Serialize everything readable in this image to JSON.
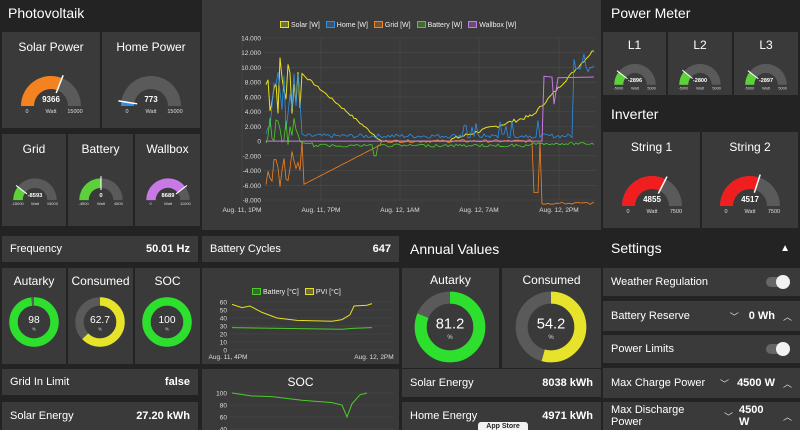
{
  "photovoltaik": {
    "title": "Photovoltaik",
    "solar": {
      "title": "Solar Power",
      "value": "9366",
      "min": "0",
      "max": "15000",
      "unit": "Watt",
      "color": "#f58220",
      "level": 0.62
    },
    "home": {
      "title": "Home Power",
      "value": "773",
      "min": "0",
      "max": "15000",
      "unit": "Watt",
      "color": "#2f8fe6",
      "level": 0.05
    },
    "grid": {
      "title": "Grid",
      "value": "-8593",
      "min": "-15000",
      "max": "15000",
      "unit": "Watt",
      "color": "#5dd13a",
      "level": 0.21
    },
    "battery": {
      "title": "Battery",
      "value": "0",
      "min": "-4500",
      "max": "4500",
      "unit": "Watt",
      "color": "#5dd13a",
      "level": 0.5
    },
    "wallbox": {
      "title": "Wallbox",
      "value": "8689",
      "min": "0",
      "max": "11000",
      "unit": "Watt",
      "color": "#c879e6",
      "level": 0.79
    }
  },
  "power_meter": {
    "title": "Power Meter",
    "l1": {
      "title": "L1",
      "value": "-2896",
      "min": "-5000",
      "max": "5000",
      "unit": "Watt",
      "color": "#5dd13a",
      "level": 0.21
    },
    "l2": {
      "title": "L2",
      "value": "-2800",
      "min": "-5000",
      "max": "5000",
      "unit": "Watt",
      "color": "#5dd13a",
      "level": 0.22
    },
    "l3": {
      "title": "L3",
      "value": "-2897",
      "min": "-5000",
      "max": "5000",
      "unit": "Watt",
      "color": "#5dd13a",
      "level": 0.21
    }
  },
  "inverter": {
    "title": "Inverter",
    "s1": {
      "title": "String 1",
      "value": "4855",
      "min": "0",
      "max": "7500",
      "unit": "Watt",
      "color": "#f01e1e",
      "level": 0.65
    },
    "s2": {
      "title": "String 2",
      "value": "4517",
      "min": "0",
      "max": "7500",
      "unit": "Watt",
      "color": "#f01e1e",
      "level": 0.6
    }
  },
  "main_chart": {
    "legend": [
      {
        "name": "Solar [W]",
        "color": "#e8e01e"
      },
      {
        "name": "Home [W]",
        "color": "#2f8fe6"
      },
      {
        "name": "Grid [W]",
        "color": "#f58220"
      },
      {
        "name": "Battery [W]",
        "color": "#4ccc2a"
      },
      {
        "name": "Wallbox [W]",
        "color": "#c879e6"
      }
    ],
    "yticks": [
      "14.000",
      "12.000",
      "10.000",
      "8.000",
      "6.000",
      "4.000",
      "2.000",
      "0",
      "-2.000",
      "-4.000",
      "-6.000",
      "-8.000"
    ],
    "xticks": [
      "Aug. 11, 1PM",
      "Aug. 11, 7PM",
      "Aug. 12, 1AM",
      "Aug. 12, 7AM",
      "Aug. 12, 2PM"
    ]
  },
  "frequency": {
    "label": "Frequency",
    "value": "50.01 Hz"
  },
  "battery_cycles": {
    "label": "Battery Cycles",
    "value": "647"
  },
  "donuts": {
    "autarky": {
      "title": "Autarky",
      "value": "98",
      "unit": "%",
      "color": "#2de02d",
      "level": 0.98
    },
    "consumed": {
      "title": "Consumed",
      "value": "62.7",
      "unit": "%",
      "color": "#e6e32a",
      "level": 0.627
    },
    "soc": {
      "title": "SOC",
      "value": "100",
      "unit": "%",
      "color": "#2de02d",
      "level": 1.0
    }
  },
  "temp_chart": {
    "legend": [
      {
        "name": "Battery [°C]",
        "color": "#4ccc2a"
      },
      {
        "name": "PVI [°C]",
        "color": "#e8e01e"
      }
    ],
    "yticks": [
      "60",
      "50",
      "40",
      "30",
      "20",
      "10",
      "0"
    ],
    "xticks": [
      "Aug. 11, 4PM",
      "Aug. 12, 2PM"
    ]
  },
  "soc_chart": {
    "title": "SOC",
    "yticks": [
      "100",
      "80",
      "60",
      "40"
    ]
  },
  "grid_in_limit": {
    "label": "Grid In Limit",
    "value": "false"
  },
  "solar_energy_left": {
    "label": "Solar Energy",
    "value": "27.20 kWh"
  },
  "annual": {
    "title": "Annual Values",
    "autarky": {
      "title": "Autarky",
      "value": "81.2",
      "unit": "%",
      "color": "#2de02d",
      "level": 0.812
    },
    "consumed": {
      "title": "Consumed",
      "value": "54.2",
      "unit": "%",
      "color": "#e6e32a",
      "level": 0.542
    },
    "solar_energy": {
      "label": "Solar Energy",
      "value": "8038 kWh"
    },
    "home_energy": {
      "label": "Home Energy",
      "value": "4971 kWh"
    },
    "footer_text": "App Store"
  },
  "settings": {
    "title": "Settings",
    "weather": {
      "label": "Weather Regulation"
    },
    "reserve": {
      "label": "Battery Reserve",
      "value": "0 Wh"
    },
    "limits": {
      "label": "Power Limits"
    },
    "max_charge": {
      "label": "Max Charge Power",
      "value": "4500 W"
    },
    "max_discharge": {
      "label": "Max Discharge Power",
      "value": "4500 W"
    }
  }
}
